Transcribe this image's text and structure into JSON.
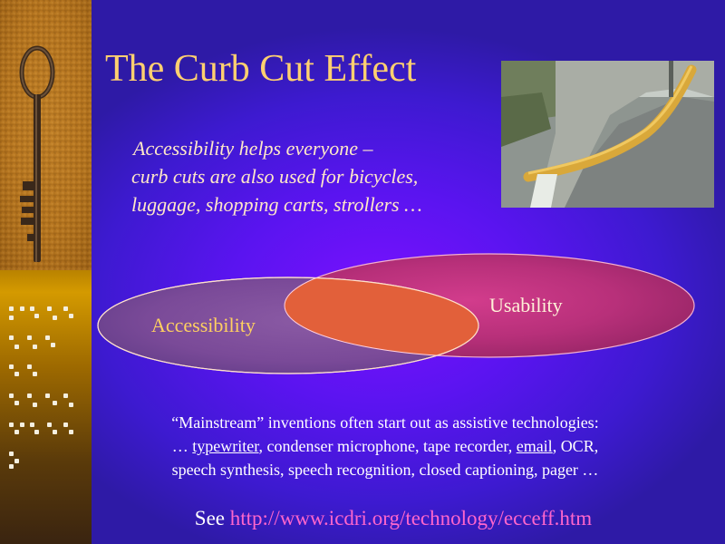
{
  "slide": {
    "title": "The Curb Cut Effect",
    "subtitle_lines": [
      "Accessibility helps everyone –",
      "curb cuts are also used for bicycles,",
      "luggage, shopping carts, strollers …"
    ],
    "venn": {
      "left_label": "Accessibility",
      "right_label": "Usability"
    },
    "mainstream": {
      "line1": "“Mainstream” inventions often start out as assistive technologies:",
      "line2_prefix": "… ",
      "line2_link1": "typewriter",
      "line2_middle": ", condenser microphone, tape recorder, ",
      "line2_link2": "email",
      "line2_suffix": ", OCR,",
      "line3": "speech synthesis, speech recognition, closed captioning, pager  …"
    },
    "see": {
      "prefix": "See ",
      "url": "http://www.icdri.org/technology/ecceff.htm"
    },
    "images": {
      "key": "antique-key-photo",
      "braille": "braille-dots",
      "curb": "curb-cut-photo"
    },
    "colors": {
      "title": "#ffd070",
      "link": "#ff66cc",
      "background": "#5a14f0",
      "accessibility_label": "#ffd060"
    }
  }
}
